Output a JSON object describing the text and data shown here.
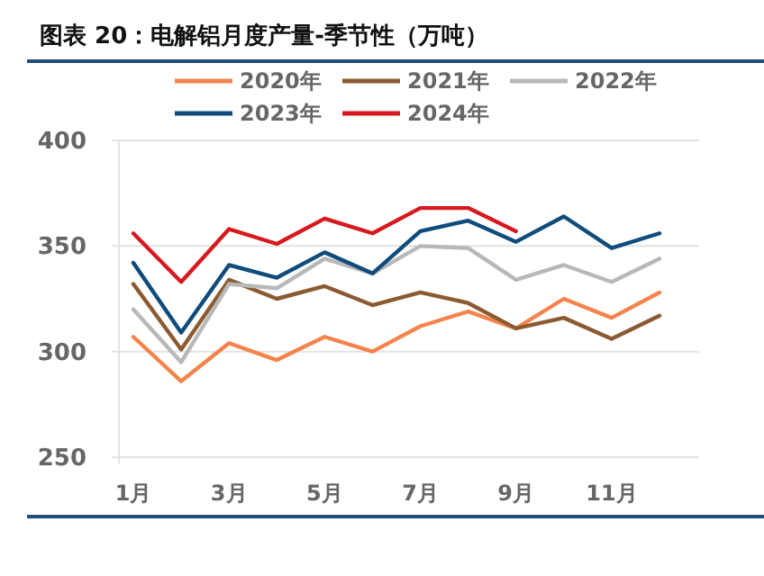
{
  "chart_data": {
    "type": "line",
    "title": "图表 20：电解铝月度产量-季节性（万吨）",
    "categories": [
      "1月",
      null,
      "3月",
      null,
      "5月",
      null,
      "7月",
      null,
      "9月",
      null,
      "11月",
      null
    ],
    "series": [
      {
        "name": "2020年",
        "color": "#f4844c",
        "values": [
          307,
          286,
          304,
          296,
          307,
          300,
          312,
          319,
          311,
          325,
          316,
          328
        ]
      },
      {
        "name": "2021年",
        "color": "#8c5a30",
        "values": [
          332,
          301,
          334,
          325,
          331,
          322,
          328,
          323,
          311,
          316,
          306,
          317
        ]
      },
      {
        "name": "2022年",
        "color": "#b8b8b8",
        "values": [
          320,
          295,
          332,
          330,
          344,
          337,
          350,
          349,
          334,
          341,
          333,
          344
        ]
      },
      {
        "name": "2023年",
        "color": "#0f4c7c",
        "values": [
          342,
          309,
          341,
          335,
          347,
          337,
          357,
          362,
          352,
          364,
          349,
          356
        ]
      },
      {
        "name": "2024年",
        "color": "#d7191f",
        "values": [
          356,
          333,
          358,
          351,
          363,
          356,
          368,
          368,
          357,
          null,
          null,
          null
        ]
      }
    ],
    "ylim": [
      250,
      400
    ],
    "yticks": [
      250,
      300,
      350,
      400
    ],
    "grid": "y",
    "legend": "top",
    "line_style": "solid"
  }
}
